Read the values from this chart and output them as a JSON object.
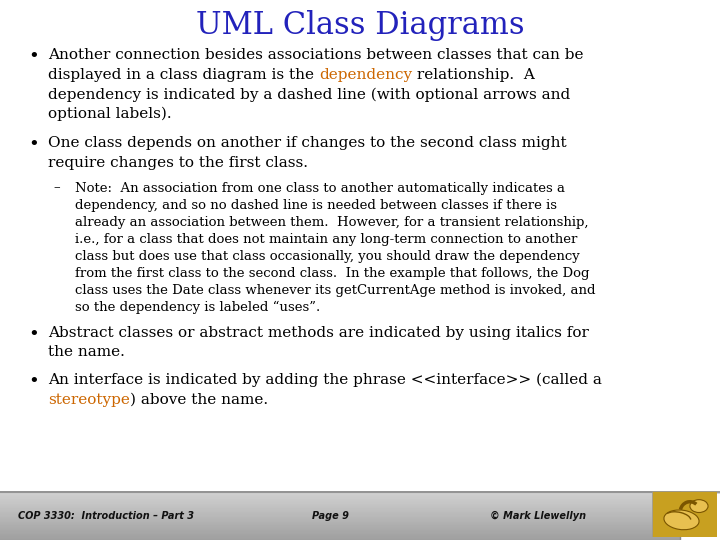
{
  "title": "UML Class Diagrams",
  "title_color": "#2222bb",
  "title_fontsize": 22,
  "bg_color": "#ffffff",
  "body_color": "#000000",
  "highlight_color": "#cc6600",
  "font_family": "serif",
  "footer_text_left": "COP 3330:  Introduction – Part 3",
  "footer_text_center": "Page 9",
  "footer_text_right": "© Mark Llewellyn",
  "b1_lines": [
    [
      "Another connection besides associations between classes that can be",
      "black"
    ],
    [
      "displayed in a class diagram is the ",
      "black",
      "dependency",
      "orange",
      " relationship.  A",
      "black"
    ],
    [
      "dependency is indicated by a dashed line (with optional arrows and",
      "black"
    ],
    [
      "optional labels).",
      "black"
    ]
  ],
  "b2_lines": [
    [
      "One class depends on another if changes to the second class might",
      "black"
    ],
    [
      "require changes to the first class.",
      "black"
    ]
  ],
  "note_lines": [
    "Note:  An association from one class to another automatically indicates a",
    "dependency, and so no dashed line is needed between classes if there is",
    "already an association between them.  However, for a transient relationship,",
    "i.e., for a class that does not maintain any long-term connection to another",
    "class but does use that class occasionally, you should draw the dependency",
    "from the first class to the second class.  In the example that follows, the Dog",
    "class uses the Date class whenever its getCurrentAge method is invoked, and",
    "so the dependency is labeled “uses”."
  ],
  "b3_lines": [
    [
      "Abstract classes or abstract methods are indicated by using italics for",
      "black"
    ],
    [
      "the name.",
      "black"
    ]
  ],
  "b4_lines": [
    [
      "An interface is indicated by adding the phrase <<interface>> (called a",
      "black"
    ],
    [
      "stereotype",
      "orange",
      ") above the name.",
      "black"
    ]
  ]
}
